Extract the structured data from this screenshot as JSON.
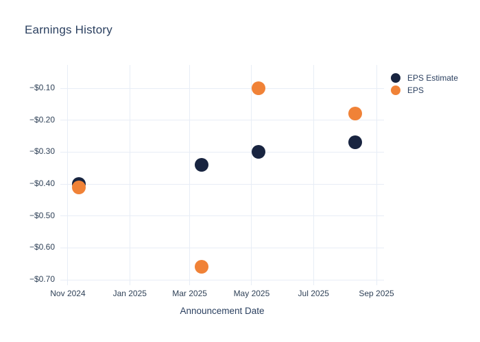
{
  "title": {
    "text": "Earnings History"
  },
  "chart_data": {
    "type": "scatter",
    "title": "Earnings History",
    "xlabel": "Announcement Date",
    "ylabel": "",
    "grid": true,
    "legend_position": "top-right",
    "marker_size_px": 20,
    "x_unit": "days since 2024-11-01 (read from axis)",
    "x_domain": [
      -7.4,
      311.4
    ],
    "y_domain": [
      -0.717,
      -0.027
    ],
    "x_ticks": [
      {
        "x_day": 0,
        "label": "Nov 2024"
      },
      {
        "x_day": 61,
        "label": "Jan 2025"
      },
      {
        "x_day": 120,
        "label": "Mar 2025"
      },
      {
        "x_day": 181,
        "label": "May 2025"
      },
      {
        "x_day": 242,
        "label": "Jul 2025"
      },
      {
        "x_day": 304,
        "label": "Sep 2025"
      }
    ],
    "y_ticks": [
      {
        "value": -0.1,
        "label": "−$0.10"
      },
      {
        "value": -0.2,
        "label": "−$0.20"
      },
      {
        "value": -0.3,
        "label": "−$0.30"
      },
      {
        "value": -0.4,
        "label": "−$0.40"
      },
      {
        "value": -0.5,
        "label": "−$0.50"
      },
      {
        "value": -0.6,
        "label": "−$0.60"
      },
      {
        "value": -0.7,
        "label": "−$0.70"
      }
    ],
    "series": [
      {
        "name": "EPS Estimate",
        "color": "#182440",
        "points": [
          {
            "date_approx": "2024-11-12",
            "x_day": 11,
            "y": -0.4
          },
          {
            "date_approx": "2025-03-13",
            "x_day": 132,
            "y": -0.34
          },
          {
            "date_approx": "2025-05-08",
            "x_day": 188,
            "y": -0.3
          },
          {
            "date_approx": "2025-08-11",
            "x_day": 283,
            "y": -0.27
          }
        ]
      },
      {
        "name": "EPS",
        "color": "#f08237",
        "points": [
          {
            "date_approx": "2024-11-12",
            "x_day": 11,
            "y": -0.41
          },
          {
            "date_approx": "2025-03-13",
            "x_day": 132,
            "y": -0.66
          },
          {
            "date_approx": "2025-05-08",
            "x_day": 188,
            "y": -0.1
          },
          {
            "date_approx": "2025-08-11",
            "x_day": 283,
            "y": -0.18
          }
        ]
      }
    ],
    "colors": {
      "background": "#ffffff",
      "grid": "#e7edf6",
      "tick_text": "#2f4157",
      "title_text": "#2a3f5f"
    }
  }
}
